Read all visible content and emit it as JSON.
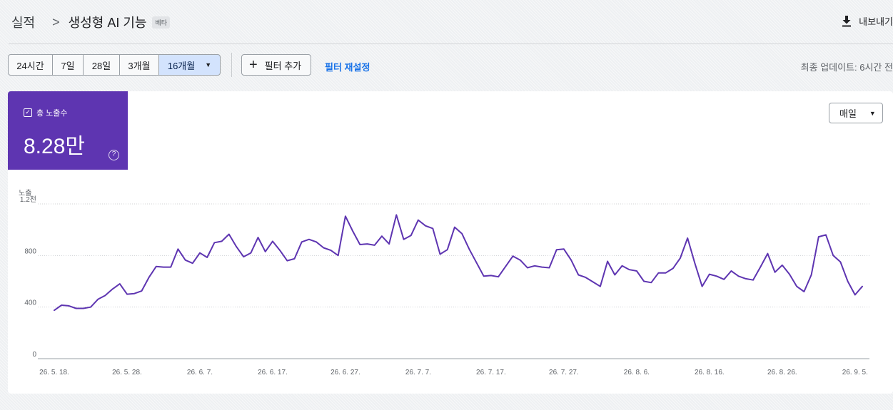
{
  "breadcrumb": {
    "root": "실적",
    "separator": ">",
    "current": "생성형 AI 기능",
    "badge": "베타"
  },
  "header": {
    "export_label": "내보내기",
    "export_icon": "download-icon"
  },
  "toolbar": {
    "ranges": [
      "24시간",
      "7일",
      "28일",
      "3개월",
      "16개월"
    ],
    "selected_range": "16개월",
    "add_filter_label": "필터 추가",
    "reset_filter_label": "필터 재설정",
    "last_update": "최종 업데이트: 6시간 전"
  },
  "metric": {
    "label": "총 노출수",
    "value": "8.28만",
    "checked": true,
    "color": "#5e35b1"
  },
  "interval": {
    "label": "매일"
  },
  "chart_data": {
    "type": "line",
    "ylabel": "노출",
    "ytick_labels": [
      "0",
      "400",
      "800",
      "1.2천"
    ],
    "yticks": [
      0,
      400,
      800,
      1200
    ],
    "ylim": [
      0,
      1200
    ],
    "xtick_labels": [
      "26. 5. 18.",
      "26. 5. 28.",
      "26. 6. 7.",
      "26. 6. 17.",
      "26. 6. 27.",
      "26. 7. 7.",
      "26. 7. 17.",
      "26. 7. 27.",
      "26. 8. 6.",
      "26. 8. 16.",
      "26. 8. 26.",
      "26. 9. 5."
    ],
    "x_start": "26. 5. 18.",
    "grid": true,
    "series": [
      {
        "color": "#5e35b1",
        "values": [
          375,
          415,
          410,
          390,
          390,
          400,
          460,
          490,
          540,
          580,
          500,
          505,
          525,
          630,
          715,
          710,
          710,
          850,
          765,
          740,
          820,
          785,
          900,
          910,
          965,
          870,
          790,
          820,
          940,
          830,
          910,
          840,
          760,
          775,
          905,
          925,
          905,
          860,
          840,
          800,
          1105,
          990,
          885,
          890,
          880,
          950,
          890,
          1115,
          925,
          955,
          1075,
          1030,
          1010,
          810,
          845,
          1020,
          970,
          850,
          745,
          640,
          645,
          635,
          715,
          795,
          765,
          705,
          720,
          710,
          705,
          845,
          850,
          765,
          650,
          630,
          595,
          560,
          755,
          650,
          720,
          690,
          680,
          600,
          590,
          665,
          665,
          700,
          780,
          935,
          740,
          560,
          655,
          640,
          615,
          680,
          640,
          620,
          610,
          710,
          815,
          670,
          725,
          655,
          560,
          520,
          650,
          945,
          960,
          800,
          750,
          600,
          495,
          560
        ]
      }
    ]
  }
}
